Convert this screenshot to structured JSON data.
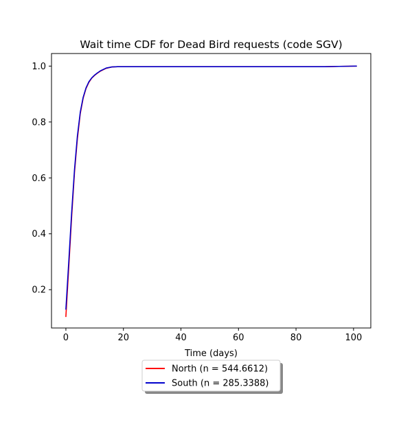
{
  "chart_data": {
    "type": "line",
    "title": "Wait time CDF for Dead Bird  requests (code SGV)",
    "xlabel": "Time (days)",
    "ylabel": "",
    "xlim": [
      -5,
      106
    ],
    "ylim": [
      0.063,
      1.045
    ],
    "x_ticks": [
      0,
      20,
      40,
      60,
      80,
      100
    ],
    "y_ticks": [
      0.2,
      0.4,
      0.6,
      0.8,
      1.0
    ],
    "x_tick_labels": [
      "0",
      "20",
      "40",
      "60",
      "80",
      "100"
    ],
    "y_tick_labels": [
      "0.2",
      "0.4",
      "0.6",
      "0.8",
      "1.0"
    ],
    "grid": false,
    "legend_position": "below plot, centered",
    "series": [
      {
        "name": "North (n = 544.6612)",
        "color": "#ff0000",
        "x": [
          0,
          1,
          2,
          3,
          4,
          5,
          6,
          7,
          8,
          9,
          10,
          11,
          12,
          14,
          16,
          18,
          20,
          30,
          50,
          70,
          90,
          95,
          101
        ],
        "y": [
          0.104,
          0.28,
          0.46,
          0.62,
          0.74,
          0.83,
          0.885,
          0.92,
          0.942,
          0.957,
          0.967,
          0.975,
          0.982,
          0.992,
          0.997,
          0.998,
          0.998,
          0.998,
          0.998,
          0.998,
          0.998,
          0.999,
          1.0
        ]
      },
      {
        "name": "South (n = 285.3388)",
        "color": "#0000cc",
        "x": [
          0,
          1,
          2,
          3,
          4,
          5,
          6,
          7,
          8,
          9,
          10,
          11,
          12,
          14,
          16,
          18,
          20,
          30,
          50,
          70,
          90,
          95,
          101
        ],
        "y": [
          0.13,
          0.3,
          0.475,
          0.63,
          0.75,
          0.835,
          0.888,
          0.922,
          0.944,
          0.958,
          0.968,
          0.976,
          0.983,
          0.993,
          0.997,
          0.998,
          0.998,
          0.998,
          0.998,
          0.998,
          0.998,
          0.999,
          1.0
        ]
      }
    ]
  }
}
